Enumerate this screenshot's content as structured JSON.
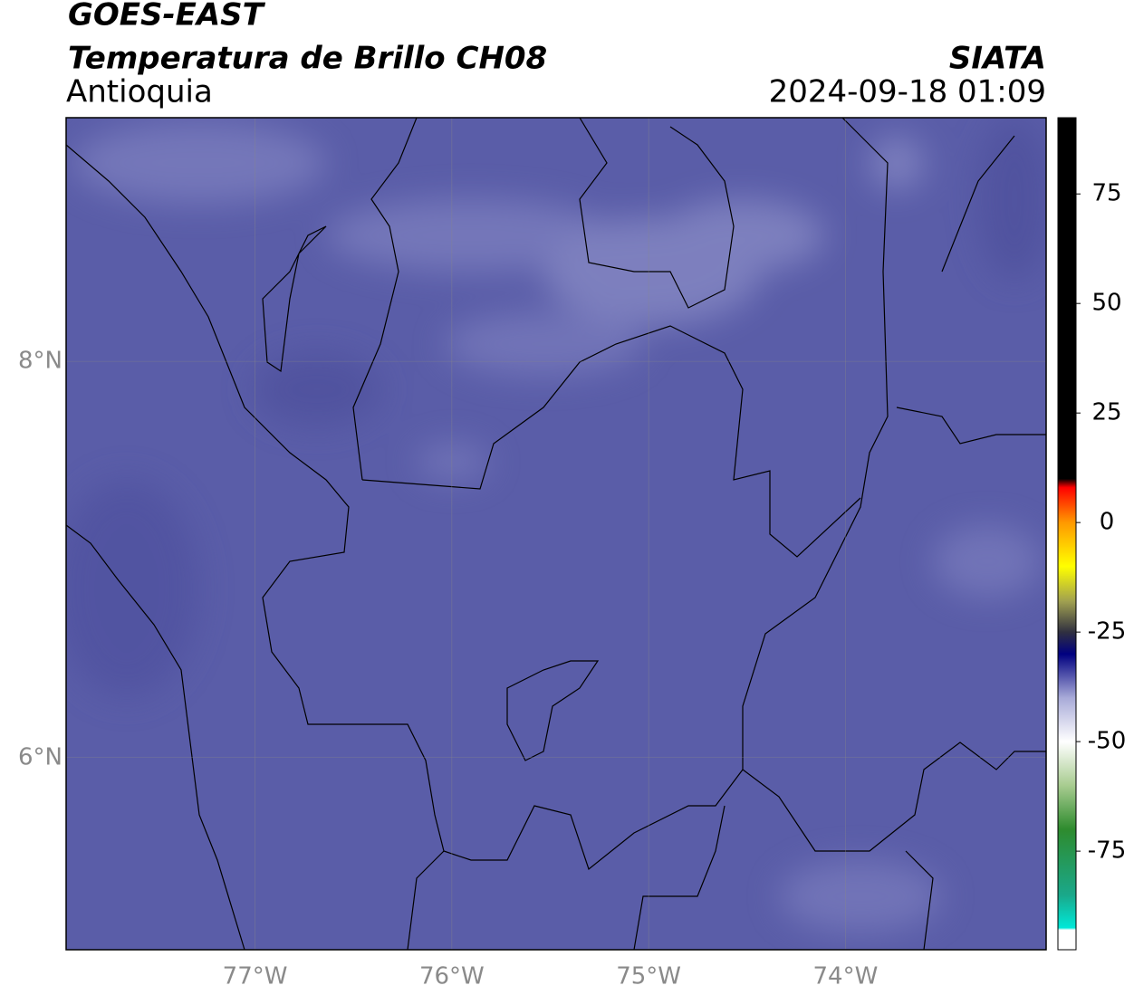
{
  "map": {
    "type": "satellite-map",
    "title": "GOES-EAST",
    "subtitle": "Temperatura de Brillo CH08",
    "region": "Antioquia",
    "source": "SIATA",
    "datetime": "2024-09-18 01:09",
    "fill_color": "#5a5da8",
    "xlim": [
      -77.96,
      -72.98
    ],
    "ylim": [
      5.03,
      9.23
    ],
    "xticks": [
      {
        "value": -77,
        "label": "77°W"
      },
      {
        "value": -76,
        "label": "76°W"
      },
      {
        "value": -75,
        "label": "75°W"
      },
      {
        "value": -74,
        "label": "74°W"
      }
    ],
    "yticks": [
      {
        "value": 8,
        "label": "8°N"
      },
      {
        "value": 6,
        "label": "6°N"
      }
    ],
    "grid": true,
    "colorbar": {
      "lim": [
        -97.5,
        92.4
      ],
      "ticks": [
        75,
        50,
        25,
        0,
        -25,
        -50,
        -75
      ],
      "stops": [
        {
          "value": -97.5,
          "color": "#ffffff"
        },
        {
          "value": -93,
          "color": "#ffffff"
        },
        {
          "value": -92.5,
          "color": "#00e8d8"
        },
        {
          "value": -85,
          "color": "#1aa88a"
        },
        {
          "value": -70,
          "color": "#2e8b2e"
        },
        {
          "value": -60,
          "color": "#a8cc90"
        },
        {
          "value": -50,
          "color": "#ffffff"
        },
        {
          "value": -40,
          "color": "#a8aad8"
        },
        {
          "value": -30,
          "color": "#000080"
        },
        {
          "value": -25,
          "color": "#303040"
        },
        {
          "value": -18,
          "color": "#a0a050"
        },
        {
          "value": -10,
          "color": "#ffff00"
        },
        {
          "value": 0,
          "color": "#ff9900"
        },
        {
          "value": 8,
          "color": "#ff0000"
        },
        {
          "value": 10,
          "color": "#000000"
        },
        {
          "value": 92.4,
          "color": "#000000"
        }
      ]
    }
  }
}
